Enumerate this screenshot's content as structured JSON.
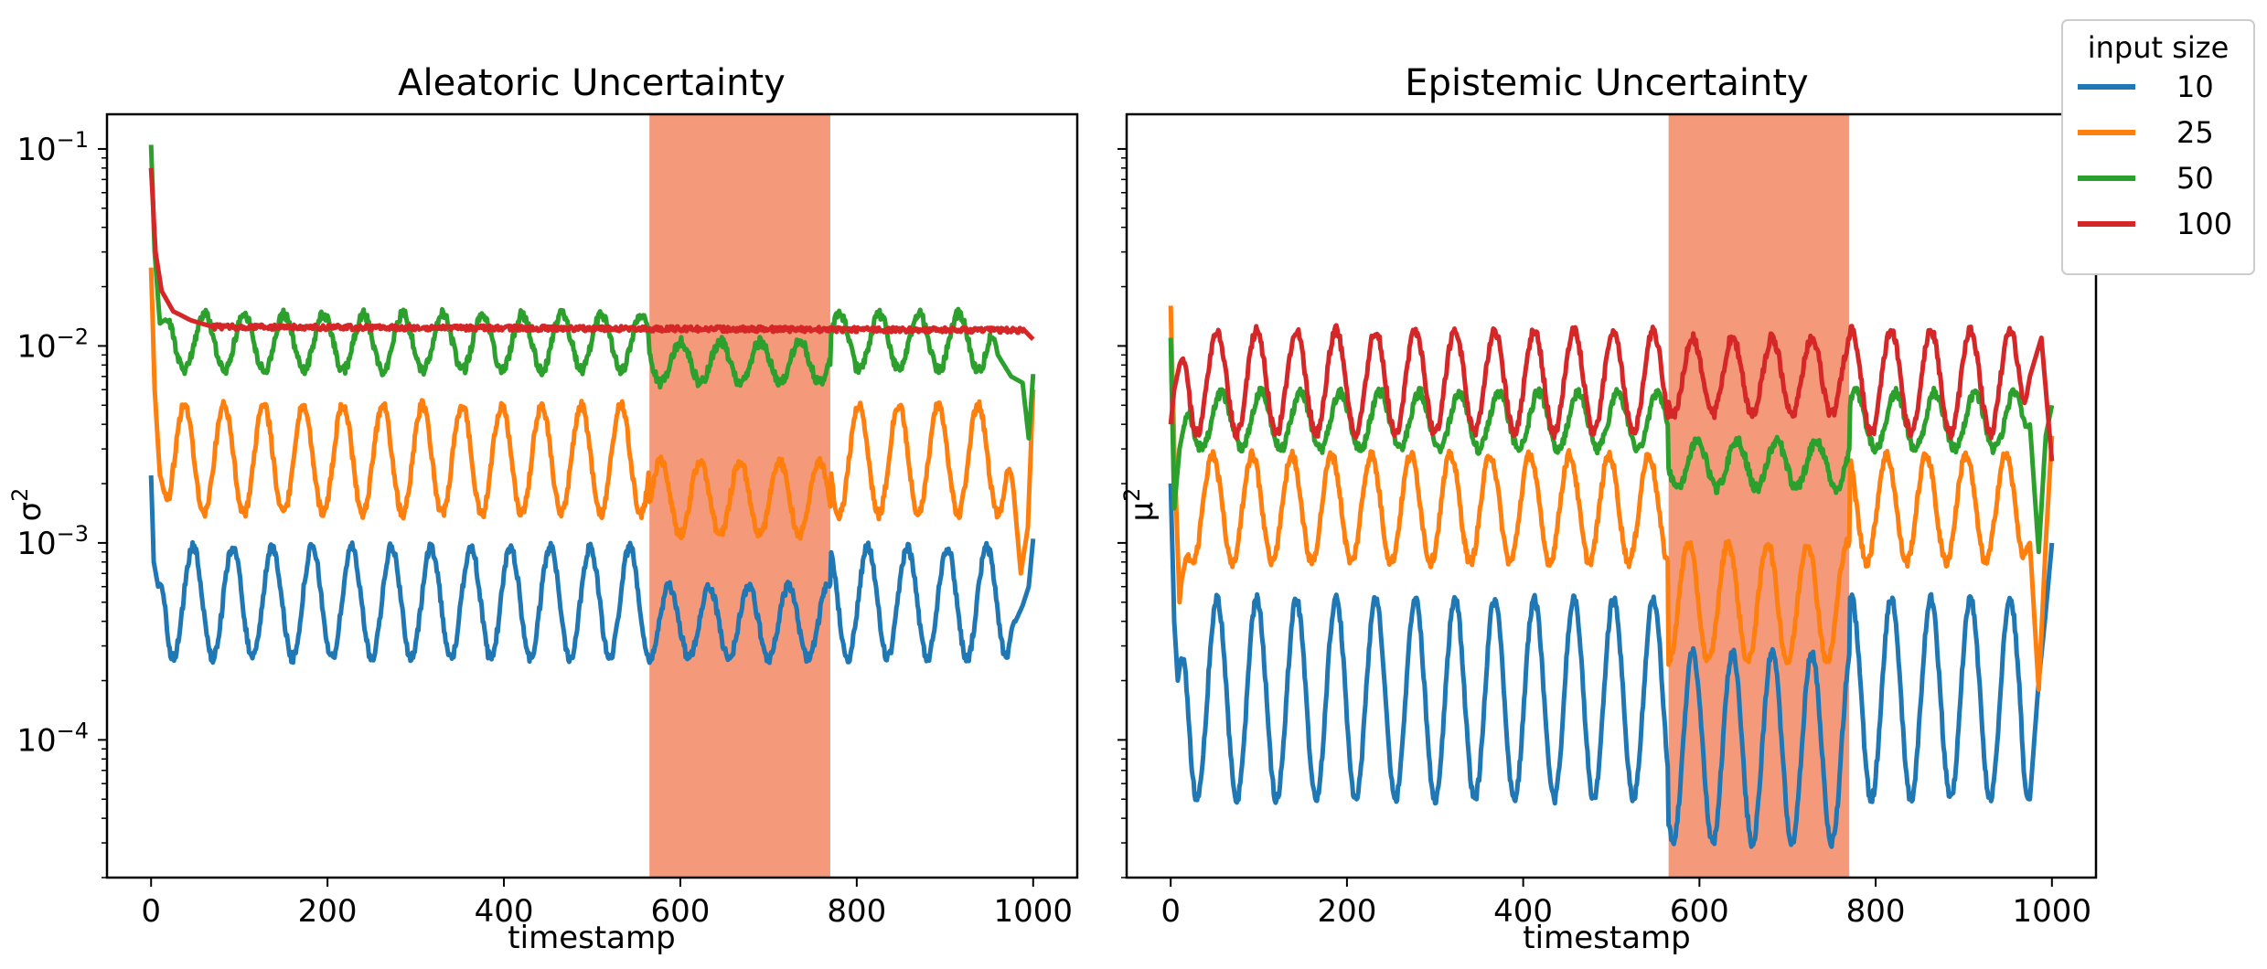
{
  "legend": {
    "title": "input size",
    "entries": [
      {
        "label": "10",
        "color": "#1f77b4"
      },
      {
        "label": "25",
        "color": "#ff7f0e"
      },
      {
        "label": "50",
        "color": "#2ca02c"
      },
      {
        "label": "100",
        "color": "#d62728"
      }
    ]
  },
  "chart_data": [
    {
      "type": "line",
      "title": "Aleatoric Uncertainty",
      "xlabel": "timestamp",
      "ylabel": "σ",
      "ylabel_superscript": "2",
      "yscale": "log",
      "xlim": [
        -50,
        1050
      ],
      "ylim": [
        2e-05,
        0.15
      ],
      "xticks": [
        0,
        200,
        400,
        600,
        800,
        1000
      ],
      "xtick_labels": [
        "0",
        "200",
        "400",
        "600",
        "800",
        "1000"
      ],
      "yticks": [
        0.1,
        0.01,
        0.001,
        0.0001
      ],
      "ytick_labels": [
        {
          "base": "10",
          "exp": "−1"
        },
        {
          "base": "10",
          "exp": "−2"
        },
        {
          "base": "10",
          "exp": "−3"
        },
        {
          "base": "10",
          "exp": "−4"
        }
      ],
      "shaded_region": {
        "x": [
          565,
          770
        ],
        "color": "#f4997a"
      },
      "series": [
        {
          "name": "10",
          "color": "#1f77b4",
          "start": {
            "x": [
              0,
              3,
              8
            ],
            "y": [
              0.0022,
              0.0008,
              0.0006
            ]
          },
          "periodic": {
            "period": 45,
            "low": 0.00026,
            "high": 0.00095,
            "phase_low_x": 25
          },
          "anomaly": {
            "x": [
              565,
              770
            ],
            "low": 0.00026,
            "high": 0.0006
          },
          "end": {
            "x": [
              980,
              988,
              995,
              1000
            ],
            "y": [
              0.0004,
              0.00048,
              0.0006,
              0.00105
            ]
          }
        },
        {
          "name": "25",
          "color": "#ff7f0e",
          "start": {
            "x": [
              0,
              4,
              10
            ],
            "y": [
              0.025,
              0.006,
              0.0022
            ]
          },
          "periodic": {
            "period": 45,
            "low": 0.0014,
            "high": 0.005,
            "phase_low_x": 15
          },
          "anomaly": {
            "x": [
              565,
              770
            ],
            "low": 0.0011,
            "high": 0.0026
          },
          "end": {
            "x": [
              978,
              986,
              994,
              1000
            ],
            "y": [
              0.0018,
              0.0007,
              0.0012,
              0.006
            ]
          }
        },
        {
          "name": "50",
          "color": "#2ca02c",
          "start": {
            "x": [
              0,
              4,
              10
            ],
            "y": [
              0.105,
              0.03,
              0.013
            ]
          },
          "periodic": {
            "period": 45,
            "low": 0.0075,
            "high": 0.0145,
            "phase_low_x": 38
          },
          "anomaly": {
            "x": [
              565,
              770
            ],
            "low": 0.0065,
            "high": 0.0105
          },
          "end": {
            "x": [
              960,
              975,
              988,
              995,
              1000
            ],
            "y": [
              0.009,
              0.007,
              0.0065,
              0.0034,
              0.0072
            ]
          }
        },
        {
          "name": "100",
          "color": "#d62728",
          "start": {
            "x": [
              0,
              5,
              12,
              25,
              45,
              70
            ],
            "y": [
              0.08,
              0.03,
              0.019,
              0.015,
              0.0135,
              0.0125
            ]
          },
          "flat": {
            "x": [
              70,
              1000
            ],
            "y": [
              0.0125,
              0.012
            ]
          },
          "end": {
            "x": [
              990,
              1000
            ],
            "y": [
              0.012,
              0.0108
            ]
          }
        }
      ]
    },
    {
      "type": "line",
      "title": "Epistemic Uncertainty",
      "xlabel": "timestamp",
      "ylabel": "μ",
      "ylabel_superscript": "2",
      "yscale": "log",
      "xlim": [
        -50,
        1050
      ],
      "ylim": [
        2e-05,
        0.15
      ],
      "xticks": [
        0,
        200,
        400,
        600,
        800,
        1000
      ],
      "xtick_labels": [
        "0",
        "200",
        "400",
        "600",
        "800",
        "1000"
      ],
      "yticks": [
        0.1,
        0.01,
        0.001,
        0.0001
      ],
      "shaded_region": {
        "x": [
          565,
          770
        ],
        "color": "#f4997a"
      },
      "series": [
        {
          "name": "10",
          "color": "#1f77b4",
          "start": {
            "x": [
              0,
              4,
              8
            ],
            "y": [
              0.002,
              0.0004,
              0.0002
            ]
          },
          "periodic": {
            "period": 45,
            "low": 5e-05,
            "high": 0.00052,
            "phase_low_x": 30
          },
          "anomaly": {
            "x": [
              565,
              770
            ],
            "low": 3e-05,
            "high": 0.00028
          },
          "end": {
            "x": [
              975,
              985,
              992,
              1000
            ],
            "y": [
              5e-05,
              0.0002,
              0.0004,
              0.001
            ]
          }
        },
        {
          "name": "25",
          "color": "#ff7f0e",
          "start": {
            "x": [
              0,
              4,
              10
            ],
            "y": [
              0.016,
              0.003,
              0.0005
            ]
          },
          "periodic": {
            "period": 45,
            "low": 0.0008,
            "high": 0.0028,
            "phase_low_x": 25
          },
          "anomaly": {
            "x": [
              565,
              770
            ],
            "low": 0.00025,
            "high": 0.001
          },
          "end": {
            "x": [
              975,
              985,
              993,
              1000
            ],
            "y": [
              0.001,
              0.00018,
              0.001,
              0.0035
            ]
          }
        },
        {
          "name": "50",
          "color": "#2ca02c",
          "start": {
            "x": [
              0,
              4,
              10
            ],
            "y": [
              0.011,
              0.0015,
              0.003
            ]
          },
          "periodic": {
            "period": 45,
            "low": 0.003,
            "high": 0.0058,
            "phase_low_x": 35
          },
          "anomaly": {
            "x": [
              565,
              770
            ],
            "low": 0.0019,
            "high": 0.0033
          },
          "end": {
            "x": [
              975,
              985,
              993,
              1000
            ],
            "y": [
              0.004,
              0.0009,
              0.0035,
              0.005
            ]
          }
        },
        {
          "name": "100",
          "color": "#d62728",
          "start": {
            "x": [
              0,
              4,
              10
            ],
            "y": [
              0.004,
              0.006,
              0.008
            ]
          },
          "periodic": {
            "period": 45,
            "low": 0.0036,
            "high": 0.012,
            "phase_low_x": 30
          },
          "anomaly": {
            "x": [
              565,
              770
            ],
            "low": 0.0045,
            "high": 0.011
          },
          "end": {
            "x": [
              975,
              988,
              1000
            ],
            "y": [
              0.007,
              0.011,
              0.0026
            ]
          }
        }
      ]
    }
  ]
}
